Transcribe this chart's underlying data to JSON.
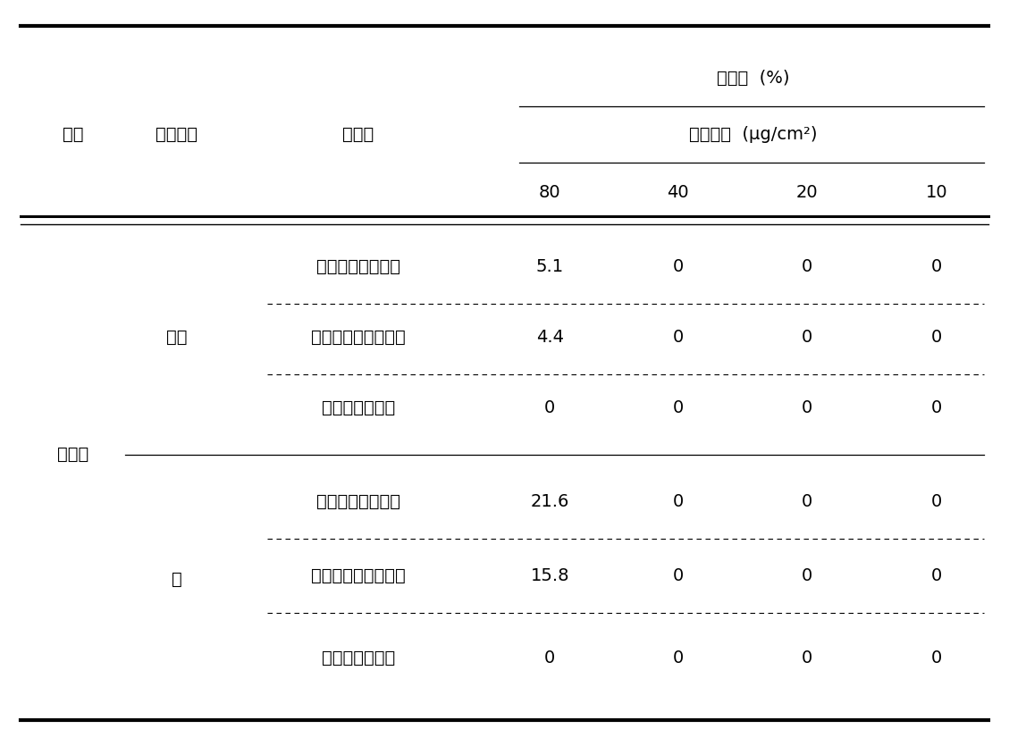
{
  "title_top": "살비율  (%)",
  "col2_header": "처리농도  (μg/cm²)",
  "col_headers": [
    "80",
    "40",
    "20",
    "10"
  ],
  "row_headers": [
    "시료",
    "추출부위",
    "진드기"
  ],
  "sample_label": "오미자",
  "part1_label": "과육",
  "part2_label": "씨",
  "rows": [
    {
      "mite": "큰다리먹지진드기",
      "values": [
        "5.1",
        "0",
        "0",
        "0"
      ],
      "divider": "dashed"
    },
    {
      "mite": "세로무니먹지진드기",
      "values": [
        "4.4",
        "0",
        "0",
        "0"
      ],
      "divider": "dashed"
    },
    {
      "mite": "저장식품진드기",
      "values": [
        "0",
        "0",
        "0",
        "0"
      ],
      "divider": "none"
    },
    {
      "mite": "큰다리먹지진드기",
      "values": [
        "21.6",
        "0",
        "0",
        "0"
      ],
      "divider": "dashed"
    },
    {
      "mite": "세로무니먹지진드기",
      "values": [
        "15.8",
        "0",
        "0",
        "0"
      ],
      "divider": "dashed"
    },
    {
      "mite": "저장식품진드기",
      "values": [
        "0",
        "0",
        "0",
        "0"
      ],
      "divider": "none"
    }
  ],
  "font_size": 14,
  "bg_color": "#ffffff",
  "text_color": "#000000",
  "figure_width": 11.29,
  "figure_height": 8.35
}
